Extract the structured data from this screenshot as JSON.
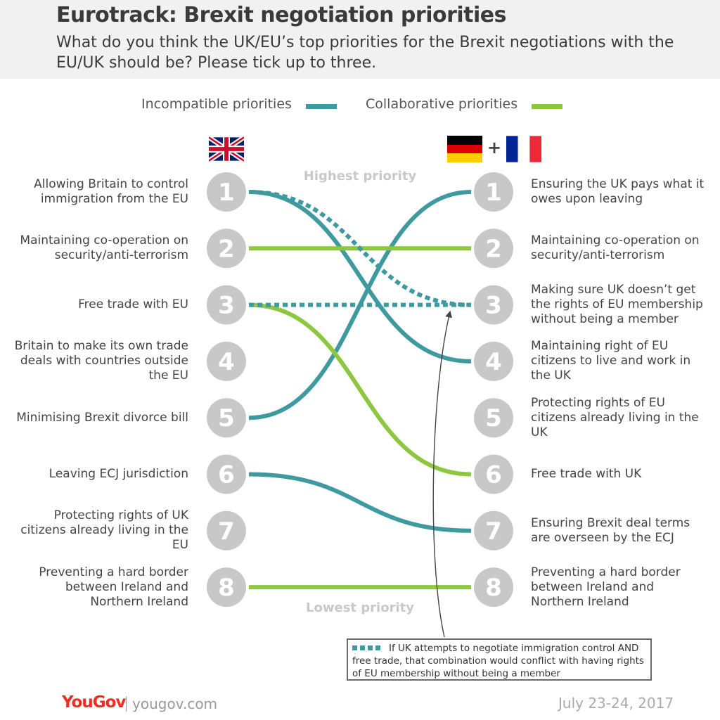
{
  "title": "Eurotrack: Brexit negotiation priorities",
  "subtitle": "What do you think the UK/EU’s top priorities for the Brexit negotiations with the EU/UK should be? Please tick up to three.",
  "legend": {
    "incompatible": "Incompatible priorities",
    "collaborative": "Collaborative priorities"
  },
  "colors": {
    "incompatible": "#3f9aa0",
    "collaborative": "#8dc63f",
    "badge": "#c8c8c8"
  },
  "flags": {
    "left": "uk-flag",
    "right": [
      "germany-flag",
      "france-flag"
    ],
    "plus": "+"
  },
  "highest_label": "Highest priority",
  "lowest_label": "Lowest priority",
  "note": "If UK attempts to negotiate immigration control AND free trade, that combination would conflict with having rights of EU membership without being a member",
  "brand": "YouGov",
  "site": "yougov.com",
  "date": "July 23-24, 2017",
  "chart_data": {
    "type": "slope",
    "ranks": [
      "1",
      "2",
      "3",
      "4",
      "5",
      "6",
      "7",
      "8"
    ],
    "left_items": [
      "Allowing Britain to control immigration from the EU",
      "Maintaining co-operation on security/anti-terrorism",
      "Free trade with EU",
      "Britain to make its own trade deals with countries outside the EU",
      "Minimising Brexit divorce bill",
      "Leaving ECJ jurisdiction",
      "Protecting rights of UK citizens already living in the EU",
      "Preventing a hard border between Ireland and Northern Ireland"
    ],
    "right_items": [
      "Ensuring the UK pays what it owes upon leaving",
      "Maintaining co-operation on security/anti-terrorism",
      "Making sure UK doesn’t get the rights of EU membership without being a member",
      "Maintaining right of EU citizens to live and work in the UK",
      "Protecting rights of EU citizens already living in the UK",
      "Free trade with UK",
      "Ensuring Brexit deal terms are overseen by the ECJ",
      "Preventing a hard border between Ireland and Northern Ireland"
    ],
    "links": [
      {
        "from": 1,
        "to": 4,
        "kind": "incompatible",
        "style": "solid"
      },
      {
        "from": 5,
        "to": 1,
        "kind": "incompatible",
        "style": "solid"
      },
      {
        "from": 6,
        "to": 7,
        "kind": "incompatible",
        "style": "solid"
      },
      {
        "from": 2,
        "to": 2,
        "kind": "collaborative",
        "style": "solid"
      },
      {
        "from": 3,
        "to": 6,
        "kind": "collaborative",
        "style": "solid"
      },
      {
        "from": 8,
        "to": 8,
        "kind": "collaborative",
        "style": "solid"
      },
      {
        "from": 1,
        "to": 3,
        "kind": "incompatible",
        "style": "dotted"
      },
      {
        "from": 3,
        "to": 3,
        "kind": "incompatible",
        "style": "dotted"
      }
    ]
  }
}
